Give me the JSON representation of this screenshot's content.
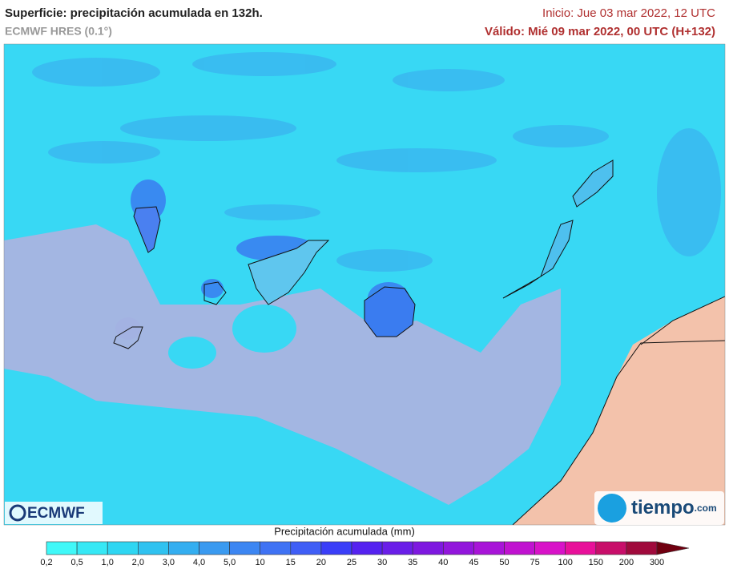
{
  "header": {
    "title": "Superficie: precipitación acumulada en 132h.",
    "model": "ECMWF HRES (0.1°)",
    "init": "Inicio: Jue 03 mar 2022, 12 UTC",
    "valid": "Válido: Mié 09 mar 2022, 00 UTC (H+132)"
  },
  "logos": {
    "left": "ECMWF",
    "right": "tiempo",
    "right_suffix": ".com"
  },
  "legend": {
    "title": "Precipitación acumulada (mm)",
    "ticks": [
      "0,2",
      "0,5",
      "1,0",
      "2,0",
      "3,0",
      "4,0",
      "5,0",
      "10",
      "15",
      "20",
      "25",
      "30",
      "35",
      "40",
      "45",
      "50",
      "75",
      "100",
      "150",
      "200",
      "300"
    ],
    "colors": [
      "#40f8f8",
      "#36e8f5",
      "#2ed6f2",
      "#30c2f0",
      "#34aef0",
      "#3a9af0",
      "#3c86f2",
      "#3f72f4",
      "#3f5ef6",
      "#3a3ef8",
      "#5522f0",
      "#6a1ee8",
      "#7e18e0",
      "#9216dc",
      "#a814d8",
      "#c012d0",
      "#d812c8",
      "#e8109a",
      "#c80e6a",
      "#a00a3c",
      "#700010"
    ]
  }
}
